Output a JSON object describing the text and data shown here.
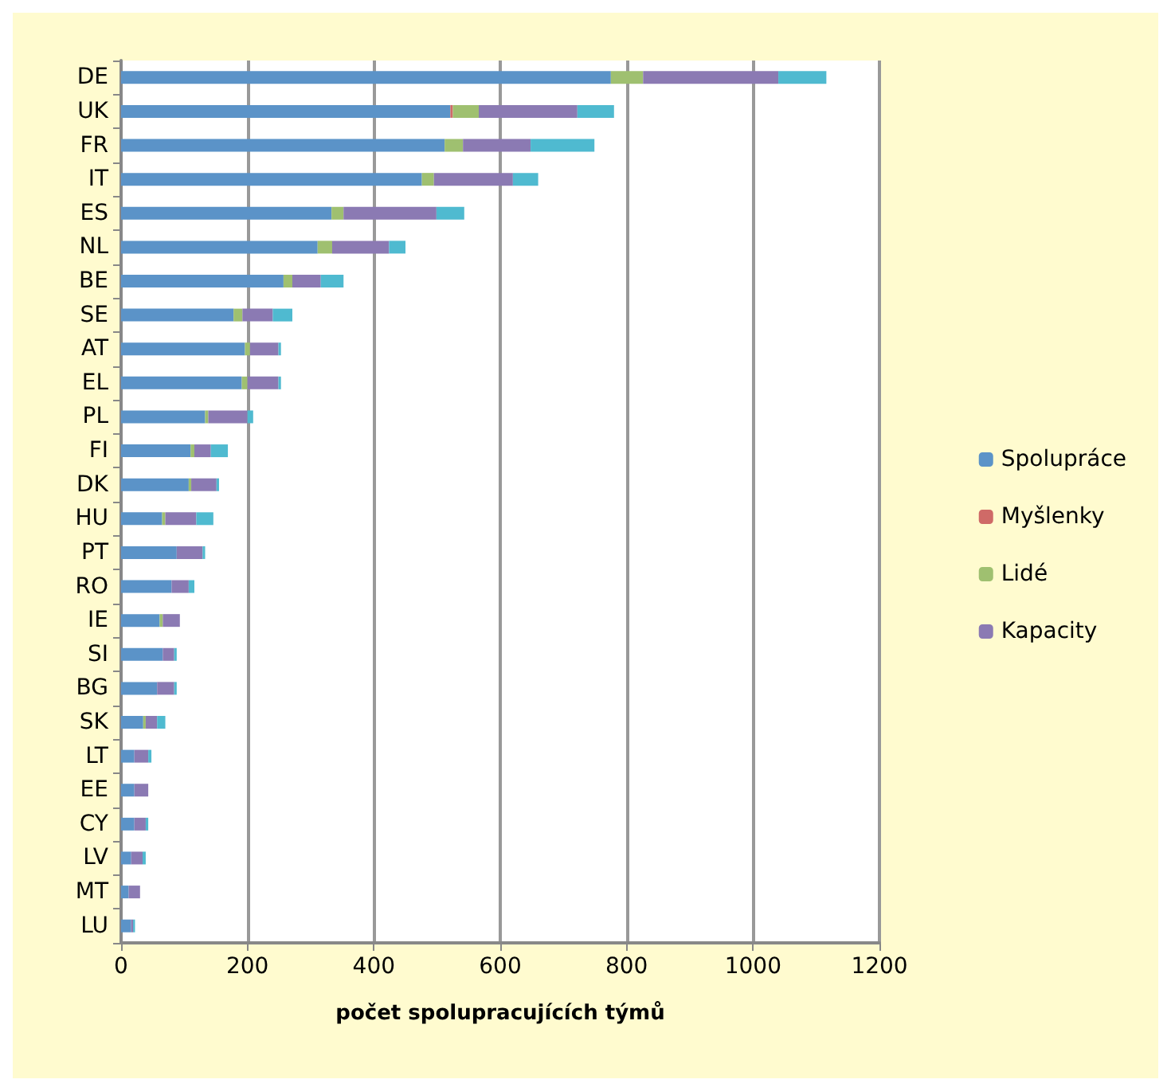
{
  "chart_data": {
    "type": "bar",
    "orientation": "horizontal",
    "stacked": true,
    "xlabel": "počet spolupracujících týmů",
    "categories": [
      "DE",
      "UK",
      "FR",
      "IT",
      "ES",
      "NL",
      "BE",
      "SE",
      "AT",
      "EL",
      "PL",
      "FI",
      "DK",
      "HU",
      "PT",
      "RO",
      "IE",
      "SI",
      "BG",
      "SK",
      "LT",
      "EE",
      "CY",
      "LV",
      "MT",
      "LU"
    ],
    "series": [
      {
        "name": "Spolupráce",
        "color": "#5b93c8",
        "values": [
          775,
          521,
          512,
          476,
          333,
          311,
          257,
          178,
          196,
          191,
          133,
          110,
          107,
          65,
          88,
          80,
          61,
          66,
          57,
          35,
          21,
          21,
          21,
          16,
          12,
          16
        ]
      },
      {
        "name": "Myšlenky",
        "color": "#cf6a67",
        "values": [
          0,
          4,
          0,
          0,
          0,
          0,
          0,
          0,
          0,
          0,
          0,
          0,
          0,
          0,
          0,
          0,
          0,
          0,
          0,
          0,
          0,
          0,
          0,
          0,
          0,
          0
        ]
      },
      {
        "name": "Lidé",
        "color": "#9fc070",
        "values": [
          51,
          41,
          29,
          19,
          19,
          23,
          14,
          14,
          8,
          9,
          5,
          6,
          4,
          5,
          0,
          0,
          5,
          0,
          0,
          4,
          0,
          0,
          0,
          0,
          0,
          0
        ]
      },
      {
        "name": "Kapacity",
        "color": "#8b7ab3",
        "values": [
          214,
          156,
          107,
          125,
          147,
          90,
          45,
          48,
          45,
          49,
          62,
          26,
          40,
          49,
          41,
          27,
          27,
          18,
          27,
          18,
          22,
          22,
          18,
          18,
          18,
          3
        ]
      },
      {
        "color": "#4fbad0",
        "values": [
          76,
          58,
          101,
          40,
          44,
          26,
          36,
          31,
          4,
          4,
          9,
          27,
          4,
          27,
          4,
          9,
          0,
          4,
          4,
          13,
          5,
          0,
          4,
          5,
          0,
          3
        ]
      }
    ],
    "xlim": [
      0,
      1200
    ],
    "xticks": [
      0,
      200,
      400,
      600,
      800,
      1000,
      1200
    ],
    "grid": "x",
    "legend": "right"
  }
}
